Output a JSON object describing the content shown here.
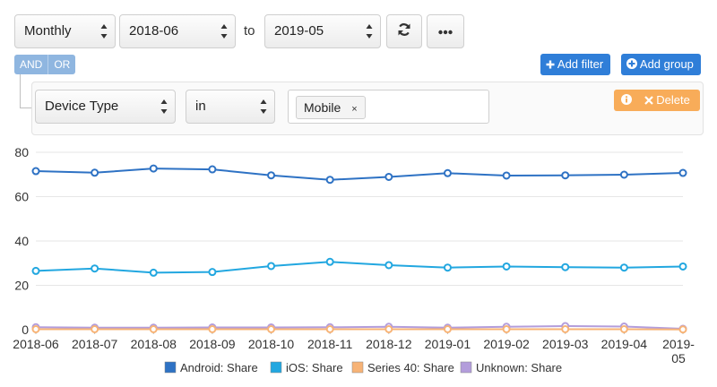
{
  "controls": {
    "period": "Monthly",
    "start_date": "2018-06",
    "to_label": "to",
    "end_date": "2019-05",
    "and_label": "AND",
    "or_label": "OR",
    "add_filter_label": "Add filter",
    "add_group_label": "Add group",
    "delete_label": "Delete"
  },
  "filter": {
    "field": "Device Type",
    "operator": "in",
    "value_tag": "Mobile",
    "remove_glyph": "×"
  },
  "icons": {
    "refresh": "refresh-icon",
    "more": "ellipsis-icon",
    "plus": "plus-icon",
    "plus_circle": "plus-circle-icon",
    "info": "info-circle-icon",
    "close": "close-icon"
  },
  "colors": {
    "primary_button": "#2f7ed8",
    "warning_button": "#f8ac59",
    "logic_toggle": "#8fb6e0"
  },
  "chart_data": {
    "type": "line",
    "categories": [
      "2018-06",
      "2018-07",
      "2018-08",
      "2018-09",
      "2018-10",
      "2018-11",
      "2018-12",
      "2019-01",
      "2019-02",
      "2019-03",
      "2019-04",
      "2019-05"
    ],
    "ylim": [
      0,
      80
    ],
    "yticks": [
      0,
      20,
      40,
      60,
      80
    ],
    "grid": "horizontal",
    "legend_position": "bottom",
    "series": [
      {
        "name": "Android: Share",
        "color": "#2e72c4",
        "values": [
          71.5,
          70.8,
          72.7,
          72.3,
          69.6,
          67.6,
          68.9,
          70.6,
          69.5,
          69.6,
          69.9,
          70.7
        ]
      },
      {
        "name": "iOS: Share",
        "color": "#22a7e0",
        "values": [
          26.5,
          27.6,
          25.7,
          26.0,
          28.7,
          30.6,
          29.1,
          28.0,
          28.5,
          28.2,
          28.0,
          28.5
        ]
      },
      {
        "name": "Series 40: Share",
        "color": "#f7b376",
        "values": [
          0.2,
          0.2,
          0.2,
          0.2,
          0.2,
          0.2,
          0.2,
          0.2,
          0.2,
          0.2,
          0.2,
          0.1
        ]
      },
      {
        "name": "Unknown: Share",
        "color": "#b39ddb",
        "values": [
          1.1,
          0.9,
          0.9,
          1.0,
          1.0,
          1.1,
          1.3,
          0.9,
          1.3,
          1.6,
          1.4,
          0.4
        ]
      }
    ]
  }
}
